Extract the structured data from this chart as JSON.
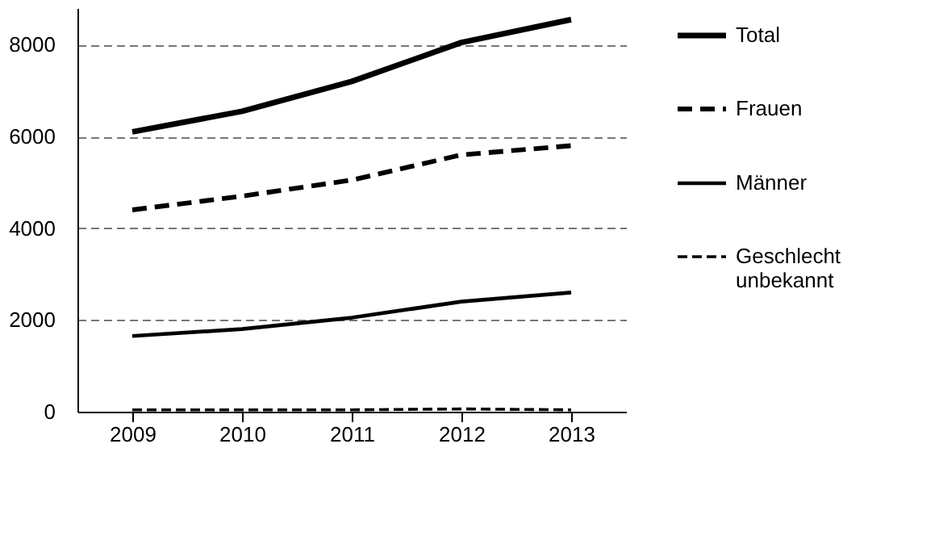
{
  "chart_data": {
    "type": "line",
    "categories": [
      "2009",
      "2010",
      "2011",
      "2012",
      "2013"
    ],
    "series": [
      {
        "name": "Total",
        "color": "#000000",
        "line_style": "solid",
        "values": [
          6100,
          6550,
          7200,
          8050,
          8550
        ]
      },
      {
        "name": "Frauen",
        "color": "#000000",
        "line_style": "dashed",
        "values": [
          4400,
          4700,
          5050,
          5600,
          5800
        ]
      },
      {
        "name": "Männer",
        "color": "#000000",
        "line_style": "solid",
        "values": [
          1650,
          1800,
          2050,
          2400,
          2600
        ]
      },
      {
        "name": "Geschlecht unbekannt",
        "color": "#000000",
        "line_style": "dashed",
        "values": [
          40,
          40,
          40,
          60,
          40
        ]
      }
    ],
    "ylim": [
      0,
      8800
    ],
    "yticks": [
      0,
      2000,
      4000,
      6000,
      8000
    ],
    "grid": "y",
    "legend": "right",
    "marker": "none"
  }
}
